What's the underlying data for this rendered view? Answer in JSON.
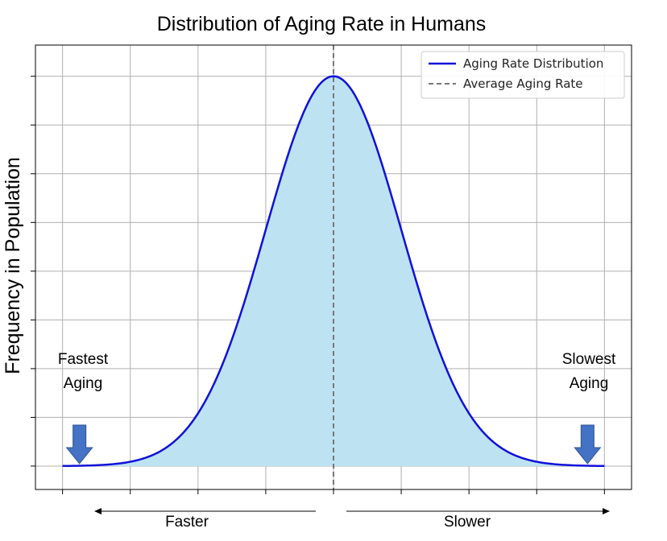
{
  "chart_data": {
    "type": "area",
    "title": "Distribution of Aging Rate in Humans",
    "xlabel": "",
    "ylabel": "Frequency in Population",
    "xlim": [
      -4.4,
      4.4
    ],
    "ylim": [
      -0.06,
      1.08
    ],
    "grid": true,
    "legend_position": "top-right",
    "x_ticks": [
      -4,
      -3,
      -2,
      -1,
      0,
      1,
      2,
      3,
      4
    ],
    "y_ticks": [
      0,
      0.125,
      0.25,
      0.375,
      0.5,
      0.625,
      0.75,
      0.875,
      1
    ],
    "series": [
      {
        "name": "Aging Rate Distribution",
        "kind": "normal_curve",
        "mean": 0,
        "std": 1,
        "peak": 1.0,
        "x_range": [
          -4,
          4
        ],
        "color": "#1010d8",
        "fill": "#bde3f2"
      },
      {
        "name": "Average Aging Rate",
        "kind": "vertical_line",
        "x": 0,
        "style": "dashed",
        "color": "#777777"
      }
    ],
    "annotations": [
      {
        "text_lines": [
          "Fastest",
          "Aging"
        ],
        "arrow": "down",
        "x": -3.75
      },
      {
        "text_lines": [
          "Slowest",
          "Aging"
        ],
        "arrow": "down",
        "x": 3.75
      }
    ],
    "direction_labels": {
      "left": "Faster",
      "right": "Slower"
    },
    "colors": {
      "curve": "#1010d8",
      "fill": "#bde3f2",
      "mean_line": "#777777",
      "arrow": "#4472c4"
    }
  }
}
